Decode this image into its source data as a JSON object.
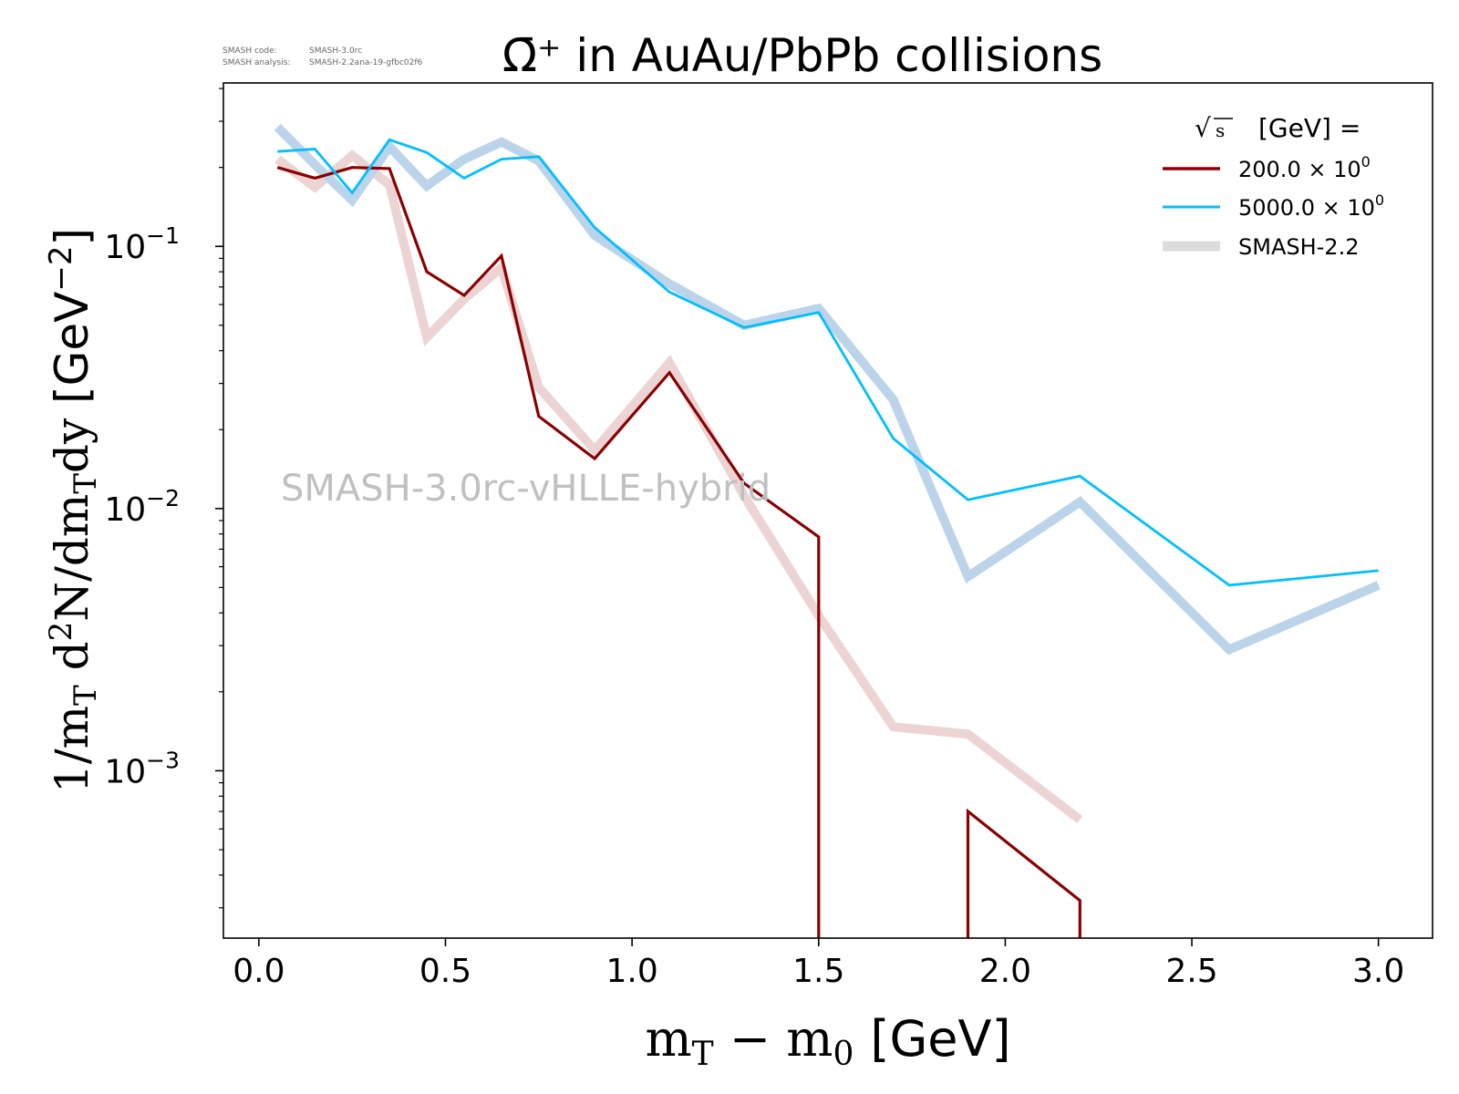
{
  "meta": {
    "code_label": "SMASH code:",
    "code_value": "SMASH-3.0rc",
    "analysis_label": "SMASH analysis:",
    "analysis_value": "SMASH-2.2ana-19-gfbc02f6"
  },
  "watermark": "SMASH-3.0rc-vHLLE-hybrid",
  "chart_data": {
    "type": "line",
    "title": "Ω̄⁺ in AuAu/PbPb collisions",
    "xlabel": "m_T − m_0 [GeV]",
    "ylabel": "1/m_T d²N/dm_T dy [GeV⁻²]",
    "xlabel_parts": {
      "main": "m",
      "sub": "T",
      "minus": " − m",
      "sub2": "0",
      "unit": "[GeV]"
    },
    "ylabel_parts": {
      "a": "1/m",
      "b": "T",
      "c": " d",
      "d": "2",
      "e": "N/dm",
      "f": "T",
      "g": "dy ",
      "h": "[GeV",
      "i": "−2",
      "j": "]"
    },
    "xscale": "linear",
    "yscale": "log",
    "xlim": [
      -0.095,
      3.145
    ],
    "ylim": [
      0.00023,
      0.42
    ],
    "xticks": [
      "0.0",
      "0.5",
      "1.0",
      "1.5",
      "2.0",
      "2.5",
      "3.0"
    ],
    "xtick_values": [
      0.0,
      0.5,
      1.0,
      1.5,
      2.0,
      2.5,
      3.0
    ],
    "yticks": [
      {
        "value": 0.1,
        "base": "10",
        "exp": "−1"
      },
      {
        "value": 0.01,
        "base": "10",
        "exp": "−2"
      },
      {
        "value": 0.001,
        "base": "10",
        "exp": "−3"
      }
    ],
    "legend": {
      "title": "√s  [GeV] =",
      "title_sqrt": "√",
      "title_s": "s",
      "title_rest": "[GeV] =",
      "placement": "top-right",
      "entries": [
        {
          "label_main": "200.0 × 10",
          "label_exp": "0",
          "color": "#8b0000",
          "kind": "line"
        },
        {
          "label_main": "5000.0 × 10",
          "label_exp": "0",
          "color": "#00bfff",
          "kind": "line"
        },
        {
          "label_main": "SMASH-2.2",
          "label_exp": "",
          "color": "#dcdcdc",
          "kind": "thick"
        }
      ]
    },
    "series": [
      {
        "name": "SMASH-2.2 (200 GeV)",
        "style": "thick",
        "color": "#ecd4d4",
        "x": [
          0.05,
          0.15,
          0.25,
          0.35,
          0.45,
          0.55,
          0.65,
          0.75,
          0.9,
          1.1,
          1.3,
          1.5,
          1.7,
          1.9,
          2.2
        ],
        "y": [
          0.215,
          0.168,
          0.222,
          0.172,
          0.045,
          0.063,
          0.083,
          0.029,
          0.0167,
          0.036,
          0.0112,
          0.0039,
          0.00147,
          0.00138,
          0.00065
        ]
      },
      {
        "name": "SMASH-2.2 (5000 GeV)",
        "style": "thick",
        "color": "#bcd4ea",
        "x": [
          0.05,
          0.15,
          0.25,
          0.35,
          0.45,
          0.55,
          0.65,
          0.75,
          0.9,
          1.1,
          1.3,
          1.5,
          1.7,
          1.9,
          2.2,
          2.6,
          3.0
        ],
        "y": [
          0.285,
          0.205,
          0.15,
          0.24,
          0.17,
          0.215,
          0.25,
          0.212,
          0.11,
          0.072,
          0.05,
          0.058,
          0.026,
          0.0055,
          0.0106,
          0.0029,
          0.0051
        ]
      },
      {
        "name": "200.0 × 10^0",
        "style": "line",
        "color": "#8b0000",
        "segments": [
          {
            "x": [
              0.05,
              0.15,
              0.25,
              0.35,
              0.45,
              0.55,
              0.65,
              0.75,
              0.9,
              1.1,
              1.3,
              1.5,
              1.5
            ],
            "y": [
              0.2,
              0.182,
              0.2,
              0.198,
              0.08,
              0.065,
              0.092,
              0.0225,
              0.0155,
              0.033,
              0.0125,
              0.0078,
              0.00023
            ]
          },
          {
            "x": [
              1.9,
              1.9,
              2.2,
              2.2
            ],
            "y": [
              0.00023,
              0.0007,
              0.00032,
              0.00023
            ]
          }
        ]
      },
      {
        "name": "5000.0 × 10^0",
        "style": "line",
        "color": "#00bfff",
        "x": [
          0.05,
          0.15,
          0.25,
          0.35,
          0.45,
          0.55,
          0.65,
          0.75,
          0.9,
          1.1,
          1.3,
          1.5,
          1.7,
          1.9,
          2.2,
          2.6,
          3.0
        ],
        "y": [
          0.23,
          0.235,
          0.16,
          0.255,
          0.228,
          0.182,
          0.215,
          0.22,
          0.118,
          0.067,
          0.049,
          0.056,
          0.0185,
          0.0108,
          0.0133,
          0.0051,
          0.0058
        ]
      }
    ]
  }
}
